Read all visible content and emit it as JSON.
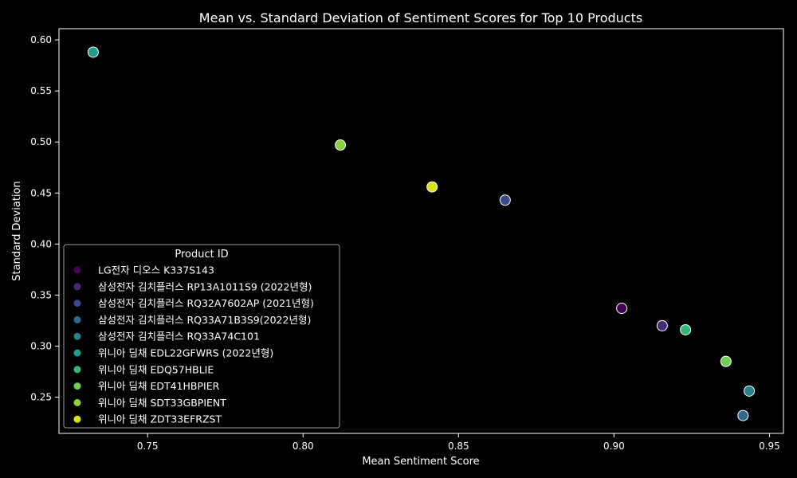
{
  "chart_data": {
    "type": "scatter",
    "title": "Mean vs. Standard Deviation of Sentiment Scores for Top 10 Products",
    "xlabel": "Mean Sentiment Score",
    "ylabel": "Standard Deviation",
    "xlim": [
      0.7215,
      0.9545
    ],
    "ylim": [
      0.2145,
      0.611
    ],
    "xticks": [
      0.75,
      0.8,
      0.85,
      0.9,
      0.95
    ],
    "xtick_labels": [
      "0.75",
      "0.80",
      "0.85",
      "0.90",
      "0.95"
    ],
    "yticks": [
      0.25,
      0.3,
      0.35,
      0.4,
      0.45,
      0.5,
      0.55,
      0.6
    ],
    "ytick_labels": [
      "0.25",
      "0.30",
      "0.35",
      "0.40",
      "0.45",
      "0.50",
      "0.55",
      "0.60"
    ],
    "grid": false,
    "legend": {
      "title": "Product ID",
      "placement": "lower-left"
    },
    "series": [
      {
        "name": "LG전자 디오스 K337S143",
        "color": "#440154",
        "x": 0.9025,
        "y": 0.337
      },
      {
        "name": "삼성전자 김치플러스 RP13A1011S9 (2022년형)",
        "color": "#482878",
        "x": 0.9155,
        "y": 0.32
      },
      {
        "name": "삼성전자 김치플러스 RQ32A7602AP (2021년형)",
        "color": "#3e4989",
        "x": 0.865,
        "y": 0.443
      },
      {
        "name": "삼성전자 김치플러스 RQ33A71B3S9(2022년형)",
        "color": "#31688e",
        "x": 0.9415,
        "y": 0.232
      },
      {
        "name": "삼성전자 김치플러스 RQ33A74C101",
        "color": "#26828e",
        "x": 0.9435,
        "y": 0.256
      },
      {
        "name": "위니아 딤채 EDL22GFWRS (2022년형)",
        "color": "#1f9e89",
        "x": 0.7325,
        "y": 0.588
      },
      {
        "name": "위니아 딤채 EDQ57HBLIE",
        "color": "#35b779",
        "x": 0.923,
        "y": 0.316
      },
      {
        "name": "위니아 딤채 EDT41HBPIER",
        "color": "#6ece58",
        "x": 0.936,
        "y": 0.285
      },
      {
        "name": "위니아 딤채 SDT33GBPIENT",
        "color": "#8ad03b",
        "x": 0.812,
        "y": 0.497
      },
      {
        "name": "위니아 딤채 ZDT33EFRZST",
        "color": "#d7e219",
        "x": 0.8415,
        "y": 0.456
      }
    ]
  }
}
